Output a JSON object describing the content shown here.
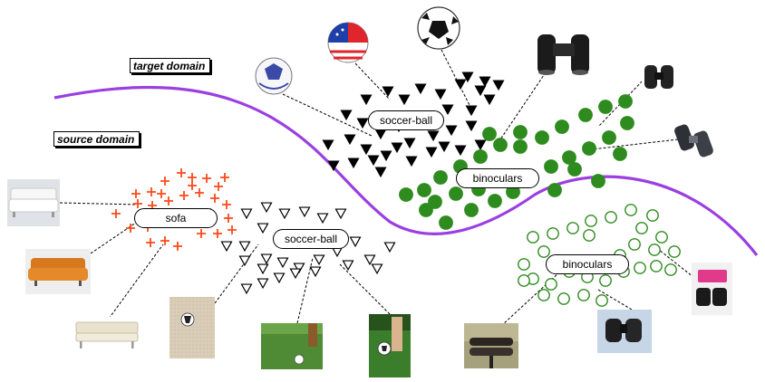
{
  "domains": {
    "target": "target domain",
    "source": "source domain"
  },
  "clusters": {
    "source_sofa": "sofa",
    "source_soccer_ball": "soccer-ball",
    "source_binoculars": "binoculars",
    "target_soccer_ball": "soccer-ball",
    "target_binoculars": "binoculars"
  },
  "colors": {
    "boundary": "#9b3fe0",
    "sofa_marker": "#ff4a1a",
    "binoculars_marker": "#2e8b1e",
    "soccer_marker": "#000000"
  },
  "photos": [
    "white-sofa-photo",
    "orange-sofa-photo",
    "cream-sofa-photo",
    "soccer-ball-sand-photo",
    "soccer-ball-grass-photo",
    "soccer-ball-field-photo",
    "binoculars-mount-photo",
    "binoculars-dark-photo",
    "binoculars-case-photo",
    "soccer-ball-white-blue-photo",
    "soccer-ball-flag-photo",
    "soccer-ball-classic-photo",
    "binoculars-black-photo-1",
    "binoculars-black-photo-2",
    "binoculars-gray-photo"
  ]
}
